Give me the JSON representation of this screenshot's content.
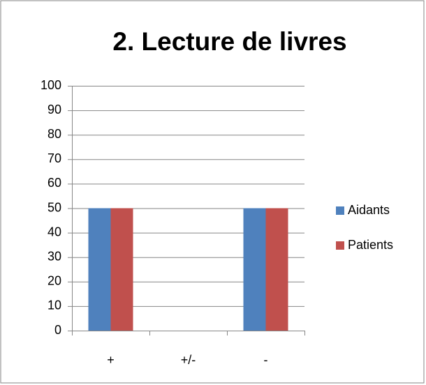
{
  "chart_data": {
    "type": "bar",
    "title": "2. Lecture de livres",
    "categories": [
      "+",
      "+/-",
      "-"
    ],
    "series": [
      {
        "name": "Aidants",
        "color": "#4f81bd",
        "values": [
          50,
          0,
          50
        ]
      },
      {
        "name": "Patients",
        "color": "#c0504d",
        "values": [
          50,
          0,
          50
        ]
      }
    ],
    "ylim": [
      0,
      100
    ],
    "yticks": [
      0,
      10,
      20,
      30,
      40,
      50,
      60,
      70,
      80,
      90,
      100
    ],
    "grid": true,
    "legend": "right"
  }
}
